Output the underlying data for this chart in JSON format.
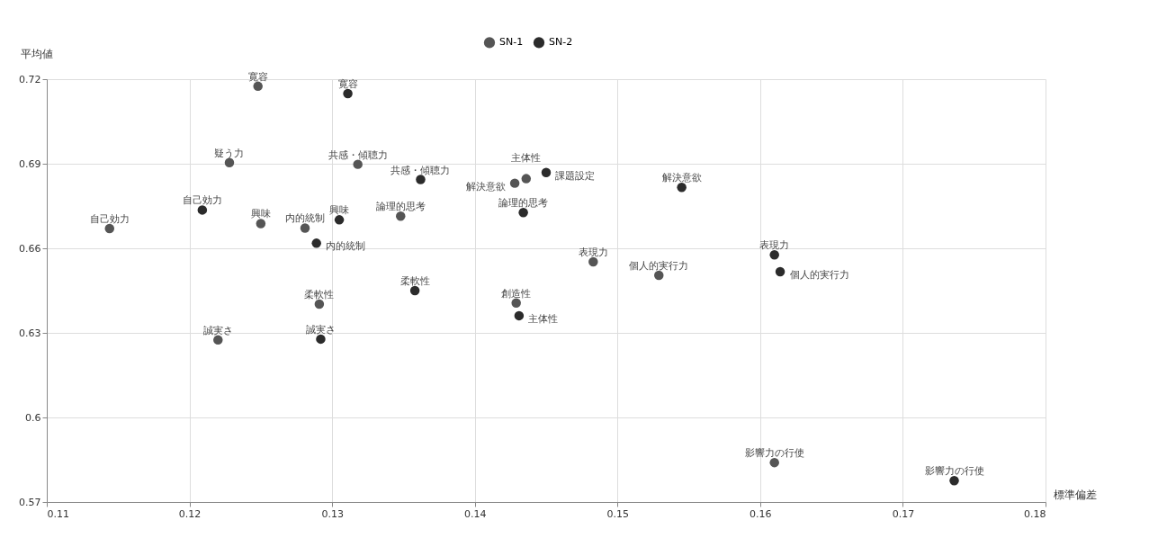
{
  "chart_data": {
    "type": "scatter",
    "xlabel": "標準偏差",
    "ylabel": "平均値",
    "xlim": [
      0.11,
      0.18
    ],
    "xticks": [
      0.11,
      0.12,
      0.13,
      0.14,
      0.15,
      0.16,
      0.17,
      0.18
    ],
    "ylim": [
      0.57,
      0.72
    ],
    "yticks": [
      0.57,
      0.6,
      0.63,
      0.66,
      0.69,
      0.72
    ],
    "grid": true,
    "legend": "top",
    "marker": "circle",
    "series": [
      {
        "name": "SN-1",
        "color": "#555555",
        "x": [
          0.1144,
          0.1248,
          0.1228,
          0.1318,
          0.125,
          0.1281,
          0.1348,
          0.1428,
          0.1436,
          0.1483,
          0.1529,
          0.1291,
          0.122,
          0.1429,
          0.161
        ],
        "values": [
          0.667,
          0.7175,
          0.6904,
          0.6898,
          0.6688,
          0.6672,
          0.6714,
          0.6831,
          0.6847,
          0.6552,
          0.6504,
          0.6402,
          0.6275,
          0.6406,
          0.584
        ],
        "value_labels": [
          "自己効力",
          "寛容",
          "疑う力",
          "共感・傾聴力",
          "興味",
          "内的統制",
          "論理的思考",
          "解決意欲",
          "主体性",
          "表現力",
          "個人的実行力",
          "柔軟性",
          "誠実さ",
          "創造性",
          "影響力の行使"
        ]
      },
      {
        "name": "SN-2",
        "color": "#2b2b2b",
        "x": [
          0.1209,
          0.1311,
          0.1362,
          0.1305,
          0.1289,
          0.1434,
          0.145,
          0.1545,
          0.161,
          0.1614,
          0.1358,
          0.1292,
          0.1431,
          0.1736
        ],
        "values": [
          0.6736,
          0.7149,
          0.6844,
          0.6701,
          0.6618,
          0.6727,
          0.6869,
          0.6816,
          0.6577,
          0.6517,
          0.645,
          0.6278,
          0.6361,
          0.5776
        ],
        "value_labels": [
          "自己効力",
          "寛容",
          "共感・傾聴力",
          "興味",
          "内的統制",
          "論理的思考",
          "課題設定",
          "解決意欲",
          "表現力",
          "個人的実行力",
          "柔軟性",
          "誠実さ",
          "主体性",
          "影響力の行使"
        ]
      }
    ]
  }
}
